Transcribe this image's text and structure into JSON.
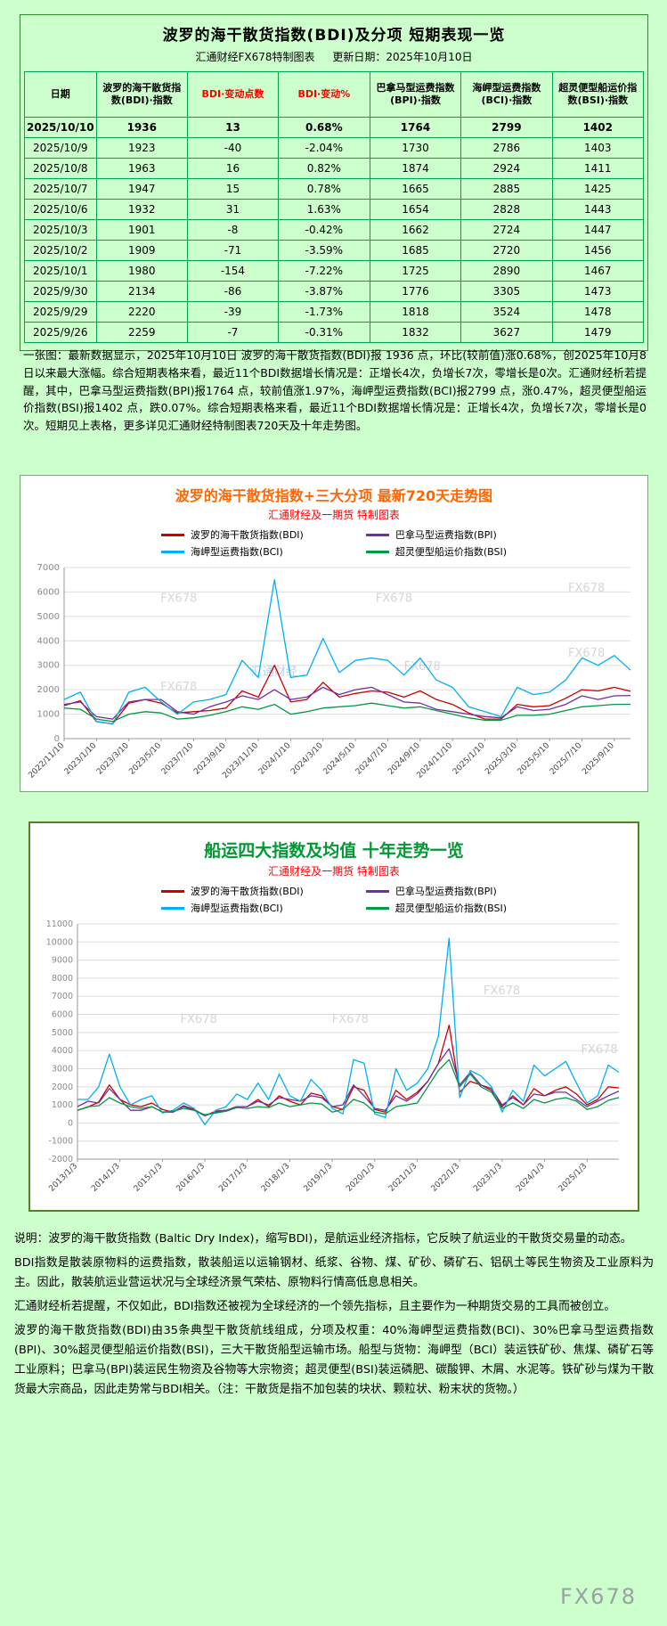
{
  "watermark": "FX678",
  "brand": "汇通财经",
  "colors": {
    "page_bg": "#ccffcc",
    "table_border": "#00a651",
    "header_red": "#ff0000",
    "chart1_title": "#ff6600",
    "chart2_title": "#009933",
    "subtitle_red": "#ff0000",
    "bdi": "#cc0000",
    "bpi": "#7030a0",
    "bci": "#00b0f0",
    "bsi": "#009944"
  },
  "table_section": {
    "title": "波罗的海干散货指数(BDI)及分项 短期表现一览",
    "source": "汇通财经FX678特制图表",
    "update": "更新日期：2025年10月10日",
    "summary": "一张图：最新数据显示，2025年10月10日 波罗的海干散货指数(BDI)报 1936 点，环比(较前值)涨0.68%，创2025年10月8日以来最大涨幅。综合短期表格来看，最近11个BDI数据增长情况是：正增长4次，负增长7次，零增长是0次。汇通财经析若提醒，其中，巴拿马型运费指数(BPI)报1764 点，较前值涨1.97%，海岬型运费指数(BCI)报2799 点，涨0.47%，超灵便型船运价指数(BSI)报1402 点，跌0.07%。综合短期表格来看，最近11个BDI数据增长情况是：正增长4次，负增长7次，零增长是0次。短期见上表格，更多详见汇通财经特制图表720天及十年走势图。"
  },
  "chart_data": [
    {
      "type": "table",
      "headers": [
        "日期",
        "波罗的海干散货指数(BDI)·指数",
        "BDI·变动点数",
        "BDI·变动%",
        "巴拿马型运费指数(BPI)·指数",
        "海岬型运费指数(BCI)·指数",
        "超灵便型船运价指数(BSI)·指数"
      ],
      "red_header_columns": [
        2,
        3
      ],
      "rows": [
        [
          "2025/10/10",
          "1936",
          "13",
          "0.68%",
          "1764",
          "2799",
          "1402"
        ],
        [
          "2025/10/9",
          "1923",
          "-40",
          "-2.04%",
          "1730",
          "2786",
          "1403"
        ],
        [
          "2025/10/8",
          "1963",
          "16",
          "0.82%",
          "1874",
          "2924",
          "1411"
        ],
        [
          "2025/10/7",
          "1947",
          "15",
          "0.78%",
          "1665",
          "2885",
          "1425"
        ],
        [
          "2025/10/6",
          "1932",
          "31",
          "1.63%",
          "1654",
          "2828",
          "1443"
        ],
        [
          "2025/10/3",
          "1901",
          "-8",
          "-0.42%",
          "1662",
          "2724",
          "1447"
        ],
        [
          "2025/10/2",
          "1909",
          "-71",
          "-3.59%",
          "1685",
          "2720",
          "1456"
        ],
        [
          "2025/10/1",
          "1980",
          "-154",
          "-7.22%",
          "1725",
          "2890",
          "1467"
        ],
        [
          "2025/9/30",
          "2134",
          "-86",
          "-3.87%",
          "1776",
          "3305",
          "1473"
        ],
        [
          "2025/9/29",
          "2220",
          "-39",
          "-1.73%",
          "1818",
          "3524",
          "1478"
        ],
        [
          "2025/9/26",
          "2259",
          "-7",
          "-0.31%",
          "1832",
          "3627",
          "1479"
        ]
      ]
    },
    {
      "type": "line",
      "title": "波罗的海干散货指数+三大分项  最新720天走势图",
      "subtitle": "汇通财经及一期货 特制图表",
      "ylim": [
        0,
        7000
      ],
      "y_ticks": [
        0,
        1000,
        2000,
        3000,
        4000,
        5000,
        6000,
        7000
      ],
      "grid": true,
      "legend_position": "top",
      "x_ticks": [
        {
          "x": 0,
          "label": "2022/11/10"
        },
        {
          "x": 2,
          "label": "2023/1/10"
        },
        {
          "x": 4,
          "label": "2023/3/10"
        },
        {
          "x": 6,
          "label": "2023/5/10"
        },
        {
          "x": 8,
          "label": "2023/7/10"
        },
        {
          "x": 10,
          "label": "2023/9/10"
        },
        {
          "x": 12,
          "label": "2023/11/10"
        },
        {
          "x": 14,
          "label": "2024/1/10"
        },
        {
          "x": 16,
          "label": "2024/3/10"
        },
        {
          "x": 18,
          "label": "2024/5/10"
        },
        {
          "x": 20,
          "label": "2024/7/10"
        },
        {
          "x": 22,
          "label": "2024/9/10"
        },
        {
          "x": 24,
          "label": "2024/11/10"
        },
        {
          "x": 26,
          "label": "2025/1/10"
        },
        {
          "x": 28,
          "label": "2025/3/10"
        },
        {
          "x": 30,
          "label": "2025/5/10"
        },
        {
          "x": 32,
          "label": "2025/7/10"
        },
        {
          "x": 34,
          "label": "2025/9/10"
        }
      ],
      "series": [
        {
          "key": "bdi",
          "name": "波罗的海干散货指数(BDI)",
          "color": "#cc0000",
          "values": [
            1350,
            1550,
            700,
            600,
            1450,
            1600,
            1450,
            1050,
            1100,
            1150,
            1250,
            1950,
            1700,
            3000,
            1500,
            1600,
            2300,
            1700,
            1850,
            1950,
            1900,
            1700,
            1950,
            1600,
            1400,
            1050,
            800,
            800,
            1400,
            1300,
            1350,
            1650,
            2000,
            1950,
            2100,
            1936
          ]
        },
        {
          "key": "bpi",
          "name": "巴拿马型运费指数(BPI)",
          "color": "#7030a0",
          "values": [
            1400,
            1500,
            900,
            800,
            1500,
            1600,
            1600,
            1100,
            1000,
            1300,
            1500,
            1750,
            1600,
            2000,
            1600,
            1700,
            2100,
            1800,
            2000,
            2100,
            1800,
            1500,
            1450,
            1200,
            1100,
            1000,
            900,
            850,
            1300,
            1150,
            1200,
            1400,
            1750,
            1600,
            1750,
            1764
          ]
        },
        {
          "key": "bci",
          "name": "海岬型运费指数(BCI)",
          "color": "#00b0f0",
          "values": [
            1600,
            1900,
            700,
            600,
            1900,
            2100,
            1500,
            1000,
            1500,
            1600,
            1800,
            3200,
            2500,
            6500,
            2500,
            2600,
            4100,
            2700,
            3200,
            3300,
            3200,
            2600,
            3300,
            2400,
            2100,
            1300,
            1100,
            900,
            2100,
            1800,
            1900,
            2400,
            3300,
            3000,
            3400,
            2799
          ]
        },
        {
          "key": "bsi",
          "name": "超灵便型船运价指数(BSI)",
          "color": "#009944",
          "values": [
            1250,
            1200,
            800,
            700,
            1000,
            1100,
            1050,
            800,
            850,
            950,
            1100,
            1300,
            1200,
            1400,
            1000,
            1100,
            1250,
            1300,
            1350,
            1450,
            1350,
            1250,
            1300,
            1150,
            1000,
            850,
            750,
            750,
            950,
            950,
            1000,
            1150,
            1300,
            1350,
            1400,
            1402
          ]
        }
      ]
    },
    {
      "type": "line",
      "title": "船运四大指数及均值 十年走势一览",
      "subtitle": "汇通财经及一期货 特制图表",
      "ylim": [
        -2000,
        11000
      ],
      "y_ticks": [
        -2000,
        -1000,
        0,
        1000,
        2000,
        3000,
        4000,
        5000,
        6000,
        7000,
        8000,
        9000,
        10000,
        11000
      ],
      "grid": true,
      "legend_position": "top",
      "x": [
        2013,
        2013.25,
        2013.5,
        2013.75,
        2014,
        2014.25,
        2014.5,
        2014.75,
        2015,
        2015.25,
        2015.5,
        2015.75,
        2016,
        2016.25,
        2016.5,
        2016.75,
        2017,
        2017.25,
        2017.5,
        2017.75,
        2018,
        2018.25,
        2018.5,
        2018.75,
        2019,
        2019.25,
        2019.5,
        2019.75,
        2020,
        2020.25,
        2020.5,
        2020.75,
        2021,
        2021.25,
        2021.5,
        2021.75,
        2022,
        2022.25,
        2022.5,
        2022.75,
        2023,
        2023.25,
        2023.5,
        2023.75,
        2024,
        2024.25,
        2024.5,
        2024.75,
        2025,
        2025.25,
        2025.5,
        2025.75
      ],
      "x_ticks": [
        {
          "x": 2013,
          "label": "2013/1/3"
        },
        {
          "x": 2014,
          "label": "2014/1/3"
        },
        {
          "x": 2015,
          "label": "2015/1/3"
        },
        {
          "x": 2016,
          "label": "2016/1/3"
        },
        {
          "x": 2017,
          "label": "2017/1/3"
        },
        {
          "x": 2018,
          "label": "2018/1/3"
        },
        {
          "x": 2019,
          "label": "2019/1/3"
        },
        {
          "x": 2020,
          "label": "2020/1/3"
        },
        {
          "x": 2021,
          "label": "2021/1/3"
        },
        {
          "x": 2022,
          "label": "2022/1/3"
        },
        {
          "x": 2023,
          "label": "2023/1/3"
        },
        {
          "x": 2024,
          "label": "2024/1/3"
        },
        {
          "x": 2025,
          "label": "2025/1/3"
        }
      ],
      "series": [
        {
          "key": "bdi",
          "name": "波罗的海干散货指数(BDI)",
          "color": "#cc0000",
          "values": [
            700,
            880,
            1150,
            2100,
            1300,
            1000,
            900,
            1100,
            750,
            600,
            950,
            750,
            400,
            650,
            700,
            900,
            900,
            1300,
            900,
            1500,
            1200,
            1000,
            1650,
            1500,
            900,
            750,
            2000,
            1800,
            750,
            600,
            1800,
            1300,
            1700,
            2300,
            3300,
            5400,
            1700,
            2300,
            2100,
            1800,
            900,
            1500,
            1000,
            1900,
            1500,
            1800,
            2000,
            1600,
            1000,
            1300,
            2000,
            1936
          ]
        },
        {
          "key": "bpi",
          "name": "巴拿马型运费指数(BPI)",
          "color": "#7030a0",
          "values": [
            900,
            1200,
            1100,
            1900,
            1300,
            700,
            700,
            900,
            600,
            600,
            900,
            700,
            400,
            600,
            700,
            900,
            900,
            1200,
            1000,
            1400,
            1300,
            1200,
            1500,
            1400,
            900,
            1000,
            2100,
            1500,
            800,
            700,
            1500,
            1200,
            1600,
            2300,
            3300,
            4100,
            2100,
            2800,
            2100,
            1900,
            1000,
            1400,
            1000,
            1600,
            1500,
            1700,
            1700,
            1300,
            900,
            1200,
            1500,
            1764
          ]
        },
        {
          "key": "bci",
          "name": "海岬型运费指数(BCI)",
          "color": "#00b0f0",
          "values": [
            1300,
            1300,
            2000,
            3800,
            2000,
            1000,
            1300,
            1500,
            550,
            700,
            1100,
            800,
            -100,
            700,
            900,
            1600,
            1300,
            2200,
            1300,
            2700,
            1500,
            1200,
            2400,
            1800,
            800,
            500,
            3500,
            3300,
            500,
            300,
            3000,
            1800,
            2200,
            3000,
            4800,
            10200,
            1400,
            2900,
            2600,
            2000,
            600,
            1800,
            1200,
            3200,
            2600,
            3000,
            3400,
            2200,
            1100,
            1500,
            3200,
            2799
          ]
        },
        {
          "key": "bsi",
          "name": "超灵便型船运价指数(BSI)",
          "color": "#009944",
          "values": [
            700,
            900,
            950,
            1400,
            1100,
            900,
            800,
            900,
            600,
            650,
            800,
            700,
            450,
            550,
            650,
            850,
            800,
            900,
            850,
            1100,
            900,
            1000,
            1100,
            1050,
            600,
            750,
            1300,
            1100,
            600,
            500,
            900,
            1000,
            1100,
            2000,
            2900,
            3500,
            2000,
            2700,
            2000,
            1700,
            800,
            1100,
            800,
            1300,
            1100,
            1300,
            1400,
            1200,
            750,
            900,
            1250,
            1402
          ]
        }
      ]
    }
  ],
  "notes": [
    "说明：波罗的海干散货指数 (Baltic Dry Index)，缩写BDI)，是航运业经济指标，它反映了航运业的干散货交易量的动态。",
    "BDI指数是散装原物料的运费指数，散装船运以运输钢材、纸浆、谷物、煤、矿砂、磷矿石、铝矾土等民生物资及工业原料为主。因此，散装航运业营运状况与全球经济景气荣枯、原物料行情高低息息相关。",
    "汇通财经析若提醒，不仅如此，BDI指数还被视为全球经济的一个领先指标，且主要作为一种期货交易的工具而被创立。",
    "波罗的海干散货指数(BDI)由35条典型干散货航线组成，分项及权重：40%海岬型运费指数(BCI)、30%巴拿马型运费指数(BPI)、30%超灵便型船运价指数(BSI)，三大干散货船型运输市场。船型与货物：海岬型（BCI）装运铁矿砂、焦煤、磷矿石等工业原料；巴拿马(BPI)装运民生物资及谷物等大宗物资；超灵便型(BSI)装运磷肥、碳酸钾、木屑、水泥等。铁矿砂与煤为干散货最大宗商品，因此走势常与BDI相关。（注：干散货是指不加包装的块状、颗粒状、粉末状的货物。）"
  ]
}
